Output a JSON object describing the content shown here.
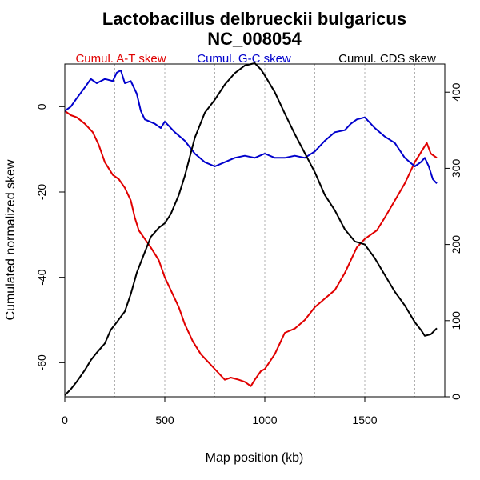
{
  "chart_data": {
    "type": "line",
    "title": "Lactobacillus delbrueckii bulgaricus",
    "subtitle": "NC_008054",
    "xlabel": "Map position (kb)",
    "ylabel": "Cumulated normalized skew",
    "xlim": [
      0,
      1900
    ],
    "ylim": [
      -68,
      10
    ],
    "xticks": [
      0,
      500,
      1000,
      1500
    ],
    "yticks": [
      -60,
      -40,
      -20,
      0
    ],
    "y2lim": [
      0,
      437
    ],
    "y2ticks": [
      0,
      100,
      200,
      300,
      400
    ],
    "grid_x": [
      0,
      250,
      500,
      750,
      1000,
      1250,
      1500,
      1750
    ],
    "grid": "vertical-dotted",
    "legend_position": "top",
    "series": [
      {
        "name": "Cumul. A-T skew",
        "color": "#e00000",
        "axis": "left",
        "x": [
          0,
          30,
          60,
          100,
          140,
          170,
          200,
          240,
          270,
          300,
          330,
          350,
          370,
          400,
          430,
          470,
          500,
          530,
          570,
          600,
          640,
          680,
          720,
          760,
          800,
          830,
          870,
          900,
          930,
          950,
          980,
          1000,
          1050,
          1080,
          1100,
          1150,
          1200,
          1250,
          1300,
          1350,
          1400,
          1430,
          1460,
          1500,
          1560,
          1600,
          1650,
          1700,
          1750,
          1790,
          1810,
          1830,
          1860
        ],
        "y": [
          -1,
          -2,
          -2.5,
          -4,
          -6,
          -9,
          -13,
          -16,
          -17,
          -19,
          -22,
          -26,
          -29,
          -31,
          -33,
          -36,
          -40,
          -43,
          -47,
          -51,
          -55,
          -58,
          -60,
          -62,
          -64,
          -63.5,
          -64,
          -64.5,
          -65.5,
          -64,
          -62,
          -61.5,
          -58,
          -55,
          -53,
          -52,
          -50,
          -47,
          -45,
          -43,
          -39,
          -36,
          -33,
          -31,
          -29,
          -26,
          -22,
          -18,
          -13,
          -10,
          -8.5,
          -11,
          -12
        ]
      },
      {
        "name": "Cumul. G-C skew",
        "color": "#0000cc",
        "axis": "left",
        "x": [
          0,
          30,
          60,
          100,
          130,
          160,
          200,
          240,
          260,
          280,
          300,
          330,
          360,
          380,
          400,
          450,
          480,
          500,
          550,
          600,
          650,
          700,
          750,
          800,
          850,
          900,
          950,
          1000,
          1050,
          1100,
          1150,
          1200,
          1250,
          1300,
          1350,
          1400,
          1430,
          1460,
          1500,
          1550,
          1600,
          1650,
          1700,
          1750,
          1780,
          1800,
          1820,
          1840,
          1860
        ],
        "y": [
          -1,
          0,
          2,
          4.5,
          6.5,
          5.5,
          6.5,
          6,
          8,
          8.5,
          5.5,
          6,
          3,
          -1,
          -3,
          -4,
          -5,
          -3.5,
          -6,
          -8,
          -11,
          -13,
          -14,
          -13,
          -12,
          -11.5,
          -12,
          -11,
          -12,
          -12,
          -11.5,
          -12,
          -10.5,
          -8,
          -6,
          -5.5,
          -4,
          -3,
          -2.5,
          -5,
          -7,
          -8.5,
          -12,
          -14,
          -13,
          -12,
          -14,
          -17,
          -18
        ]
      },
      {
        "name": "Cumul. CDS skew",
        "color": "#000000",
        "axis": "right",
        "x": [
          0,
          30,
          60,
          100,
          130,
          160,
          200,
          230,
          260,
          300,
          330,
          360,
          400,
          430,
          470,
          500,
          530,
          570,
          600,
          650,
          700,
          750,
          800,
          850,
          900,
          950,
          980,
          1000,
          1050,
          1100,
          1150,
          1200,
          1250,
          1300,
          1350,
          1400,
          1450,
          1500,
          1550,
          1600,
          1650,
          1700,
          1750,
          1780,
          1800,
          1830,
          1860
        ],
        "y": [
          2,
          10,
          20,
          35,
          48,
          58,
          70,
          88,
          98,
          112,
          135,
          163,
          190,
          210,
          222,
          228,
          240,
          265,
          290,
          340,
          373,
          390,
          410,
          425,
          435,
          438,
          430,
          422,
          400,
          372,
          345,
          320,
          295,
          265,
          245,
          220,
          204,
          200,
          182,
          160,
          138,
          120,
          98,
          88,
          80,
          82,
          90
        ]
      }
    ]
  }
}
